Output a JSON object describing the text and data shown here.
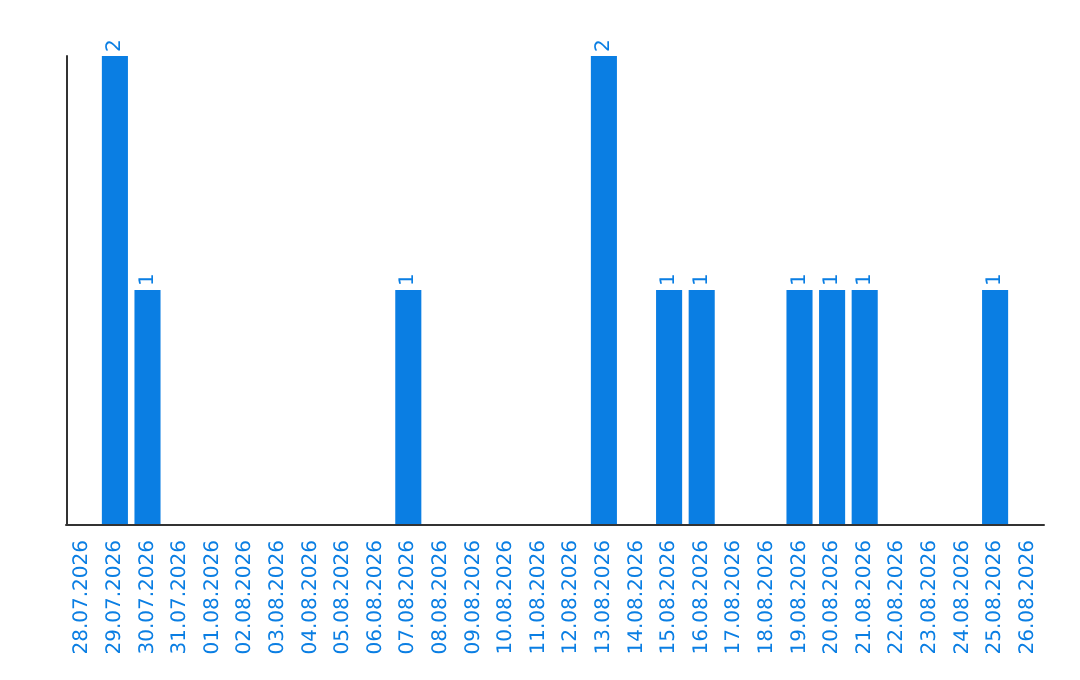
{
  "chart_data": {
    "type": "bar",
    "categories": [
      "28.07.2026",
      "29.07.2026",
      "30.07.2026",
      "31.07.2026",
      "01.08.2026",
      "02.08.2026",
      "03.08.2026",
      "04.08.2026",
      "05.08.2026",
      "06.08.2026",
      "07.08.2026",
      "08.08.2026",
      "09.08.2026",
      "10.08.2026",
      "11.08.2026",
      "12.08.2026",
      "13.08.2026",
      "14.08.2026",
      "15.08.2026",
      "16.08.2026",
      "17.08.2026",
      "18.08.2026",
      "19.08.2026",
      "20.08.2026",
      "21.08.2026",
      "22.08.2026",
      "23.08.2026",
      "24.08.2026",
      "25.08.2026",
      "26.08.2026"
    ],
    "values": [
      0,
      2,
      1,
      0,
      0,
      0,
      0,
      0,
      0,
      0,
      1,
      0,
      0,
      0,
      0,
      0,
      2,
      0,
      1,
      1,
      0,
      0,
      1,
      1,
      1,
      0,
      0,
      0,
      1,
      0
    ],
    "value_labels": [
      null,
      "2",
      "1",
      null,
      null,
      null,
      null,
      null,
      null,
      null,
      "1",
      null,
      null,
      null,
      null,
      null,
      "2",
      null,
      "1",
      "1",
      null,
      null,
      "1",
      "1",
      "1",
      null,
      null,
      null,
      "1",
      null
    ],
    "color": "#0a7ee3",
    "ylim": [
      0,
      2
    ],
    "tick_labels": "x"
  }
}
